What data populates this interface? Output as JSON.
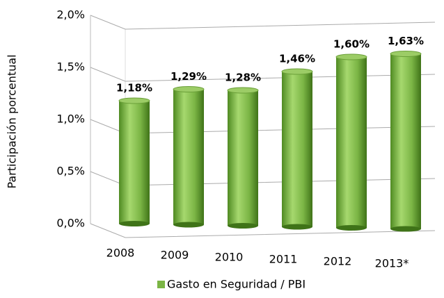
{
  "chart_data": {
    "type": "bar",
    "ylabel": "Participación porcentual",
    "categories": [
      "2008",
      "2009",
      "2010",
      "2011",
      "2012",
      "2013*"
    ],
    "series": [
      {
        "name": "Gasto en Seguridad / PBI",
        "color": "#7bb545",
        "values": [
          1.18,
          1.29,
          1.28,
          1.46,
          1.6,
          1.63
        ],
        "value_labels": [
          "1,18%",
          "1,29%",
          "1,28%",
          "1,46%",
          "1,60%",
          "1,63%"
        ]
      }
    ],
    "ylim": [
      0,
      2.0
    ],
    "yticks": [
      {
        "value": 0,
        "label": "0,0%"
      },
      {
        "value": 0.5,
        "label": "0,5%"
      },
      {
        "value": 1.0,
        "label": "1,0%"
      },
      {
        "value": 1.5,
        "label": "1,5%"
      },
      {
        "value": 2.0,
        "label": "2,0%"
      }
    ],
    "grid": true,
    "legend": "bottom"
  }
}
